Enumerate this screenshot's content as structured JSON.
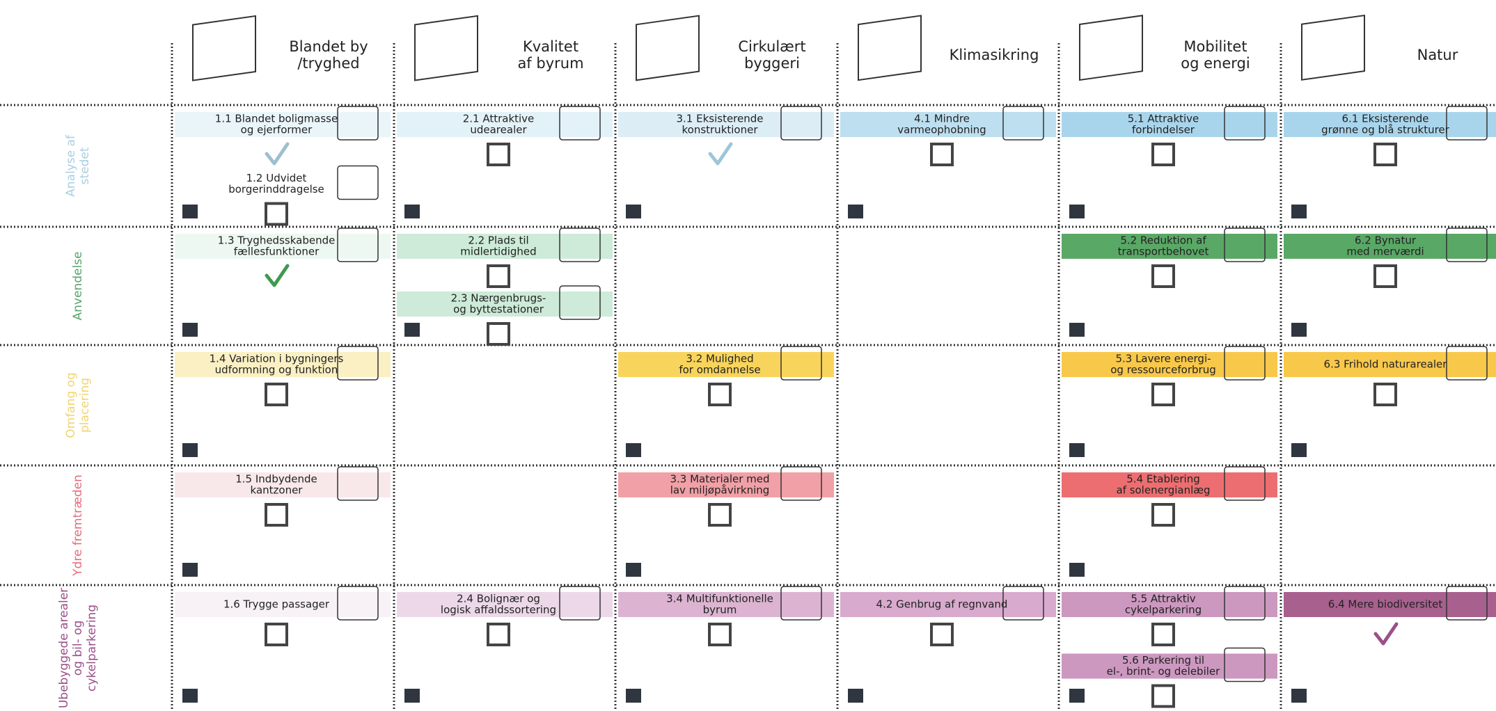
{
  "columns": [
    {
      "title": [
        "Blandet by",
        "/tryghed"
      ]
    },
    {
      "title": [
        "Kvalitet",
        "af byrum"
      ]
    },
    {
      "title": [
        "Cirkulært",
        "byggeri"
      ]
    },
    {
      "title": [
        "Klimasikring"
      ]
    },
    {
      "title": [
        "Mobilitet",
        "og energi"
      ]
    },
    {
      "title": [
        "Natur"
      ]
    }
  ],
  "rows": [
    {
      "label": [
        "Analyse af",
        "stedet"
      ],
      "color": "#a9cfe0",
      "cells": [
        {
          "items": [
            {
              "lines": [
                "1.1 Blandet boligmasse",
                "og ejerformer"
              ],
              "color": "#eaf5fa",
              "checked": true,
              "mark_color": "#9dbfcf"
            },
            {
              "lines": [
                "1.2 Udvidet",
                "borgerinddragelse"
              ],
              "color": "#ffffff",
              "checked": false
            }
          ]
        },
        {
          "items": [
            {
              "lines": [
                "2.1 Attraktive",
                "udearealer"
              ],
              "color": "#e3f2f8",
              "checked": false
            }
          ]
        },
        {
          "items": [
            {
              "lines": [
                "3.1 Eksisterende",
                "konstruktioner"
              ],
              "color": "#dcedf6",
              "checked": true,
              "mark_color": "#9cc6d9"
            }
          ]
        },
        {
          "items": [
            {
              "lines": [
                "4.1 Mindre",
                "varmeophobning"
              ],
              "color": "#bddff0",
              "checked": false
            }
          ]
        },
        {
          "items": [
            {
              "lines": [
                "5.1 Attraktive",
                "forbindelser"
              ],
              "color": "#a9d5ec",
              "checked": false
            }
          ]
        },
        {
          "items": [
            {
              "lines": [
                "6.1 Eksisterende",
                "grønne og blå strukturer"
              ],
              "color": "#a9d5ec",
              "checked": false
            }
          ]
        }
      ]
    },
    {
      "label": [
        "Anvendelse"
      ],
      "color": "#5aa36a",
      "cells": [
        {
          "items": [
            {
              "lines": [
                "1.3 Tryghedsskabende",
                "fællesfunktioner"
              ],
              "color": "#eef8f2",
              "checked": true,
              "mark_color": "#3e9a4f"
            }
          ]
        },
        {
          "items": [
            {
              "lines": [
                "2.2 Plads til",
                "midlertidighed"
              ],
              "color": "#cdebd8",
              "checked": false
            },
            {
              "lines": [
                "2.3 Nærgenbrugs-",
                "og byttestationer"
              ],
              "color": "#cdebd8",
              "checked": false
            }
          ]
        },
        {
          "items": []
        },
        {
          "items": []
        },
        {
          "items": [
            {
              "lines": [
                "5.2 Reduktion af",
                "transportbehovet"
              ],
              "color": "#5aa866",
              "checked": false
            }
          ]
        },
        {
          "items": [
            {
              "lines": [
                "6.2 Bynatur",
                "med merværdi"
              ],
              "color": "#5aa866",
              "checked": false
            }
          ]
        }
      ]
    },
    {
      "label": [
        "Omfang og",
        "placering"
      ],
      "color": "#f0d56e",
      "cells": [
        {
          "items": [
            {
              "lines": [
                "1.4 Variation i bygningers",
                "udformning og funktion"
              ],
              "color": "#fbf0c4",
              "checked": false
            }
          ]
        },
        {
          "items": []
        },
        {
          "items": [
            {
              "lines": [
                "3.2 Mulighed",
                "for omdannelse"
              ],
              "color": "#f8d45c",
              "checked": false
            }
          ]
        },
        {
          "items": []
        },
        {
          "items": [
            {
              "lines": [
                "5.3 Lavere energi-",
                "og ressourceforbrug"
              ],
              "color": "#f8c84a",
              "checked": false
            }
          ]
        },
        {
          "items": [
            {
              "lines": [
                "6.3 Frihold naturarealer"
              ],
              "color": "#f8c84a",
              "checked": false
            }
          ]
        }
      ]
    },
    {
      "label": [
        "Ydre fremtræden"
      ],
      "color": "#e56c7c",
      "cells": [
        {
          "items": [
            {
              "lines": [
                "1.5 Indbydende",
                "kantzoner"
              ],
              "color": "#f8e8ea",
              "checked": false
            }
          ]
        },
        {
          "items": []
        },
        {
          "items": [
            {
              "lines": [
                "3.3 Materialer med",
                "lav miljøpåvirkning"
              ],
              "color": "#f0a0a6",
              "checked": false
            }
          ]
        },
        {
          "items": []
        },
        {
          "items": [
            {
              "lines": [
                "5.4 Etablering",
                "af solenergianlæg"
              ],
              "color": "#ec6e70",
              "checked": false
            }
          ]
        },
        {
          "items": []
        }
      ]
    },
    {
      "label": [
        "Ubebyggede arealer",
        "og bil- og",
        "cykelparkering"
      ],
      "color": "#9b4f88",
      "cells": [
        {
          "items": [
            {
              "lines": [
                "1.6 Trygge passager"
              ],
              "color": "#f8f2f6",
              "checked": false
            }
          ]
        },
        {
          "items": [
            {
              "lines": [
                "2.4 Bolignær og",
                "logisk affaldssortering"
              ],
              "color": "#ecd8e8",
              "checked": false
            }
          ]
        },
        {
          "items": [
            {
              "lines": [
                "3.4 Multifunktionelle",
                "byrum"
              ],
              "color": "#dcb4d2",
              "checked": false
            }
          ]
        },
        {
          "items": [
            {
              "lines": [
                "4.2 Genbrug af regnvand"
              ],
              "color": "#d8aacd",
              "checked": false
            }
          ]
        },
        {
          "items": [
            {
              "lines": [
                "5.5 Attraktiv",
                "cykelparkering"
              ],
              "color": "#cc98c0",
              "checked": false
            },
            {
              "lines": [
                "5.6 Parkering til",
                "el-, brint- og delebiler"
              ],
              "color": "#cc98c0",
              "checked": false
            }
          ]
        },
        {
          "items": [
            {
              "lines": [
                "6.4 Mere biodiversitet"
              ],
              "color": "#a8608f",
              "checked": true,
              "mark_color": "#9b4f88"
            }
          ]
        }
      ]
    }
  ]
}
